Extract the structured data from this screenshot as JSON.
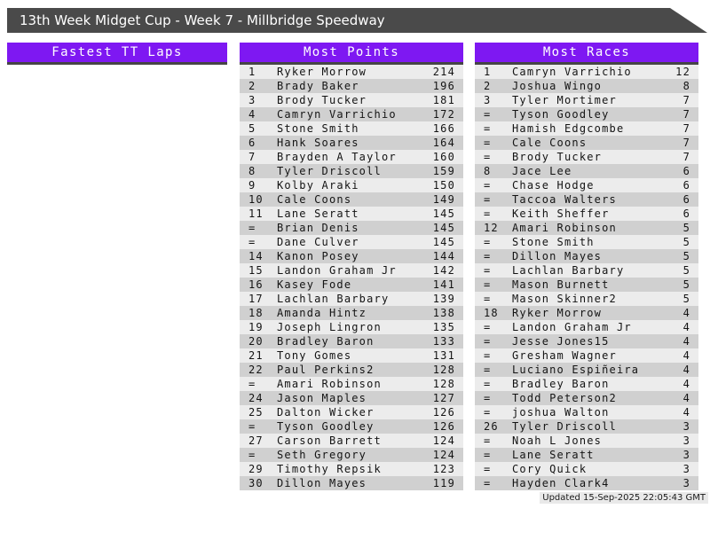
{
  "title": "13th Week Midget Cup - Week 7 - Millbridge Speedway",
  "footer": {
    "updated": "Updated 15-Sep-2025 22:05:43 GMT"
  },
  "colors": {
    "accent_purple": "#7e18f2",
    "titlebar_gray": "#4a4a4a",
    "row_light": "#ececec",
    "row_dark": "#d0d0d0",
    "header_underline": "#454545"
  },
  "columns": [
    {
      "id": "fastest_tt_laps",
      "header": "Fastest TT Laps",
      "rows": []
    },
    {
      "id": "most_points",
      "header": "Most Points",
      "rows": [
        {
          "rank": "1",
          "name": "Ryker Morrow",
          "value": "214"
        },
        {
          "rank": "2",
          "name": "Brady Baker",
          "value": "196"
        },
        {
          "rank": "3",
          "name": "Brody Tucker",
          "value": "181"
        },
        {
          "rank": "4",
          "name": "Camryn Varrichio",
          "value": "172"
        },
        {
          "rank": "5",
          "name": "Stone Smith",
          "value": "166"
        },
        {
          "rank": "6",
          "name": "Hank Soares",
          "value": "164"
        },
        {
          "rank": "7",
          "name": "Brayden A Taylor",
          "value": "160"
        },
        {
          "rank": "8",
          "name": "Tyler Driscoll",
          "value": "159"
        },
        {
          "rank": "9",
          "name": "Kolby Araki",
          "value": "150"
        },
        {
          "rank": "10",
          "name": "Cale Coons",
          "value": "149"
        },
        {
          "rank": "11",
          "name": "Lane Seratt",
          "value": "145"
        },
        {
          "rank": "=",
          "name": "Brian Denis",
          "value": "145"
        },
        {
          "rank": "=",
          "name": "Dane Culver",
          "value": "145"
        },
        {
          "rank": "14",
          "name": "Kanon Posey",
          "value": "144"
        },
        {
          "rank": "15",
          "name": "Landon Graham Jr",
          "value": "142"
        },
        {
          "rank": "16",
          "name": "Kasey Fode",
          "value": "141"
        },
        {
          "rank": "17",
          "name": "Lachlan Barbary",
          "value": "139"
        },
        {
          "rank": "18",
          "name": "Amanda Hintz",
          "value": "138"
        },
        {
          "rank": "19",
          "name": "Joseph Lingron",
          "value": "135"
        },
        {
          "rank": "20",
          "name": "Bradley Baron",
          "value": "133"
        },
        {
          "rank": "21",
          "name": "Tony Gomes",
          "value": "131"
        },
        {
          "rank": "22",
          "name": "Paul Perkins2",
          "value": "128"
        },
        {
          "rank": "=",
          "name": "Amari Robinson",
          "value": "128"
        },
        {
          "rank": "24",
          "name": "Jason Maples",
          "value": "127"
        },
        {
          "rank": "25",
          "name": "Dalton Wicker",
          "value": "126"
        },
        {
          "rank": "=",
          "name": "Tyson Goodley",
          "value": "126"
        },
        {
          "rank": "27",
          "name": "Carson Barrett",
          "value": "124"
        },
        {
          "rank": "=",
          "name": "Seth Gregory",
          "value": "124"
        },
        {
          "rank": "29",
          "name": "Timothy Repsik",
          "value": "123"
        },
        {
          "rank": "30",
          "name": "Dillon Mayes",
          "value": "119"
        }
      ]
    },
    {
      "id": "most_races",
      "header": "Most Races",
      "rows": [
        {
          "rank": "1",
          "name": "Camryn Varrichio",
          "value": "12"
        },
        {
          "rank": "2",
          "name": "Joshua Wingo",
          "value": "8"
        },
        {
          "rank": "3",
          "name": "Tyler Mortimer",
          "value": "7"
        },
        {
          "rank": "=",
          "name": "Tyson Goodley",
          "value": "7"
        },
        {
          "rank": "=",
          "name": "Hamish Edgcombe",
          "value": "7"
        },
        {
          "rank": "=",
          "name": "Cale Coons",
          "value": "7"
        },
        {
          "rank": "=",
          "name": "Brody Tucker",
          "value": "7"
        },
        {
          "rank": "8",
          "name": "Jace Lee",
          "value": "6"
        },
        {
          "rank": "=",
          "name": "Chase Hodge",
          "value": "6"
        },
        {
          "rank": "=",
          "name": "Taccoa Walters",
          "value": "6"
        },
        {
          "rank": "=",
          "name": "Keith Sheffer",
          "value": "6"
        },
        {
          "rank": "12",
          "name": "Amari Robinson",
          "value": "5"
        },
        {
          "rank": "=",
          "name": "Stone Smith",
          "value": "5"
        },
        {
          "rank": "=",
          "name": "Dillon Mayes",
          "value": "5"
        },
        {
          "rank": "=",
          "name": "Lachlan Barbary",
          "value": "5"
        },
        {
          "rank": "=",
          "name": "Mason Burnett",
          "value": "5"
        },
        {
          "rank": "=",
          "name": "Mason Skinner2",
          "value": "5"
        },
        {
          "rank": "18",
          "name": "Ryker Morrow",
          "value": "4"
        },
        {
          "rank": "=",
          "name": "Landon Graham Jr",
          "value": "4"
        },
        {
          "rank": "=",
          "name": "Jesse Jones15",
          "value": "4"
        },
        {
          "rank": "=",
          "name": "Gresham Wagner",
          "value": "4"
        },
        {
          "rank": "=",
          "name": "Luciano Espiñeira",
          "value": "4"
        },
        {
          "rank": "=",
          "name": "Bradley Baron",
          "value": "4"
        },
        {
          "rank": "=",
          "name": "Todd Peterson2",
          "value": "4"
        },
        {
          "rank": "=",
          "name": "joshua Walton",
          "value": "4"
        },
        {
          "rank": "26",
          "name": "Tyler Driscoll",
          "value": "3"
        },
        {
          "rank": "=",
          "name": "Noah L Jones",
          "value": "3"
        },
        {
          "rank": "=",
          "name": "Lane Seratt",
          "value": "3"
        },
        {
          "rank": "=",
          "name": "Cory Quick",
          "value": "3"
        },
        {
          "rank": "=",
          "name": "Hayden Clark4",
          "value": "3"
        }
      ]
    }
  ]
}
